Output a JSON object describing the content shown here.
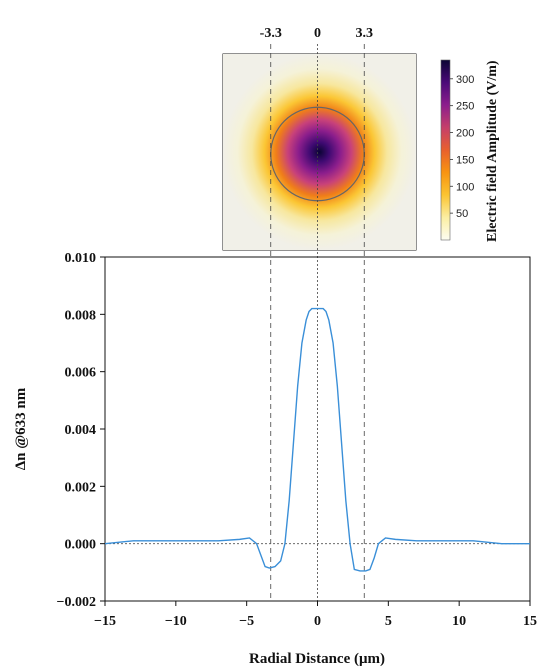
{
  "chart_data": [
    {
      "type": "line",
      "xlabel": "Radial Distance (μm)",
      "ylabel": "Δn @633 nm",
      "xlim": [
        -15,
        15
      ],
      "ylim": [
        -0.002,
        0.01
      ],
      "x_ticks": [
        "−15",
        "−10",
        "−5",
        "0",
        "5",
        "10",
        "15"
      ],
      "y_ticks": [
        "−0.002",
        "0.000",
        "0.002",
        "0.004",
        "0.006",
        "0.008",
        "0.010"
      ],
      "series_color": "#3a8fd8",
      "x": [
        -15,
        -13,
        -11,
        -9,
        -7,
        -5.5,
        -4.8,
        -4.3,
        -4,
        -3.7,
        -3.4,
        -3,
        -2.6,
        -2.3,
        -2.0,
        -1.7,
        -1.4,
        -1.1,
        -0.8,
        -0.6,
        -0.4,
        -0.2,
        0,
        0.2,
        0.4,
        0.6,
        0.8,
        1.1,
        1.4,
        1.7,
        2.0,
        2.3,
        2.6,
        3.0,
        3.4,
        3.7,
        4.0,
        4.3,
        4.8,
        5.5,
        7,
        9,
        11,
        13,
        15
      ],
      "y": [
        0.0,
        0.0001,
        0.0001,
        0.0001,
        0.0001,
        0.00015,
        0.0002,
        0.0,
        -0.0004,
        -0.0008,
        -0.00085,
        -0.0008,
        -0.0006,
        0.0,
        0.0015,
        0.0035,
        0.0055,
        0.007,
        0.0078,
        0.0081,
        0.0082,
        0.0082,
        0.0082,
        0.0082,
        0.0082,
        0.0081,
        0.0078,
        0.007,
        0.0055,
        0.0035,
        0.0015,
        0.0,
        -0.0009,
        -0.00095,
        -0.00095,
        -0.0009,
        -0.0005,
        0.0,
        0.0002,
        0.00015,
        0.0001,
        0.0001,
        0.0001,
        0.0,
        0.0
      ],
      "reference_lines": {
        "vertical_dashed": [
          -3.3,
          3.3
        ],
        "vertical_dotted": [
          0
        ],
        "horizontal_dotted": [
          0
        ]
      }
    },
    {
      "type": "heatmap",
      "top_ticks": [
        "-3.3",
        "0",
        "3.3"
      ],
      "top_tick_values": [
        -3.3,
        0,
        3.3
      ],
      "colorbar_title": "Electric field Amplitude  (V/m)",
      "colorbar_ticks": [
        "50",
        "100",
        "150",
        "200",
        "250",
        "300"
      ],
      "colorbar_range": [
        0,
        335
      ],
      "circle_radius": 3.3,
      "colormap": [
        "#fcfdf2",
        "#fbeea2",
        "#fbc431",
        "#f89411",
        "#e8602d",
        "#c53f6a",
        "#8c1e8c",
        "#4b0a78",
        "#0b0434"
      ]
    }
  ]
}
